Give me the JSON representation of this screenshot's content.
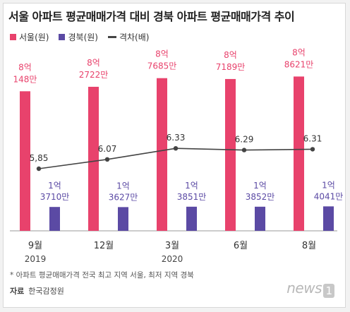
{
  "title": "서울 아파트 평균매매가격 대비 경북 아파트 평균매매가격 추이",
  "legend": {
    "seoul": "서울(원)",
    "gyeongbuk": "경북(원)",
    "ratio": "격차(배)"
  },
  "footnote": "* 아파트 평균매매가격 전국 최고 지역 서울, 최저 지역 경북",
  "source": {
    "label": "자료",
    "value": "한국감정원"
  },
  "logo": {
    "text": "news",
    "mark": "1"
  },
  "colors": {
    "seoul": "#e8426c",
    "gyeongbuk": "#5b4aa4",
    "ratio": "#444444"
  },
  "chart_data": {
    "type": "bar",
    "categories": [
      "9월",
      "12월",
      "3월",
      "6월",
      "8월"
    ],
    "year_labels": [
      "2019",
      "",
      "2020",
      "",
      ""
    ],
    "series": [
      {
        "name": "서울(원)",
        "values": [
          801480000,
          827220000,
          876850000,
          871890000,
          886210000
        ],
        "labels": [
          [
            "8억",
            "148만"
          ],
          [
            "8억",
            "2722만"
          ],
          [
            "8억",
            "7685만"
          ],
          [
            "8억",
            "7189만"
          ],
          [
            "8억",
            "8621만"
          ]
        ]
      },
      {
        "name": "경북(원)",
        "values": [
          137100000,
          136270000,
          138510000,
          138520000,
          140410000
        ],
        "labels": [
          [
            "1억",
            "3710만"
          ],
          [
            "1억",
            "3627만"
          ],
          [
            "1억",
            "3851만"
          ],
          [
            "1억",
            "3852만"
          ],
          [
            "1억",
            "4041만"
          ]
        ]
      },
      {
        "name": "격차(배)",
        "type": "line",
        "values": [
          5.85,
          6.07,
          6.33,
          6.29,
          6.31
        ],
        "labels": [
          "5,85",
          "6.07",
          "6.33",
          "6.29",
          "6.31"
        ]
      }
    ],
    "title": "서울 아파트 평균매매가격 대비 경북 아파트 평균매매가격 추이",
    "xlabel": "",
    "ylabel": "",
    "grid": false,
    "legend_position": "top-left"
  }
}
